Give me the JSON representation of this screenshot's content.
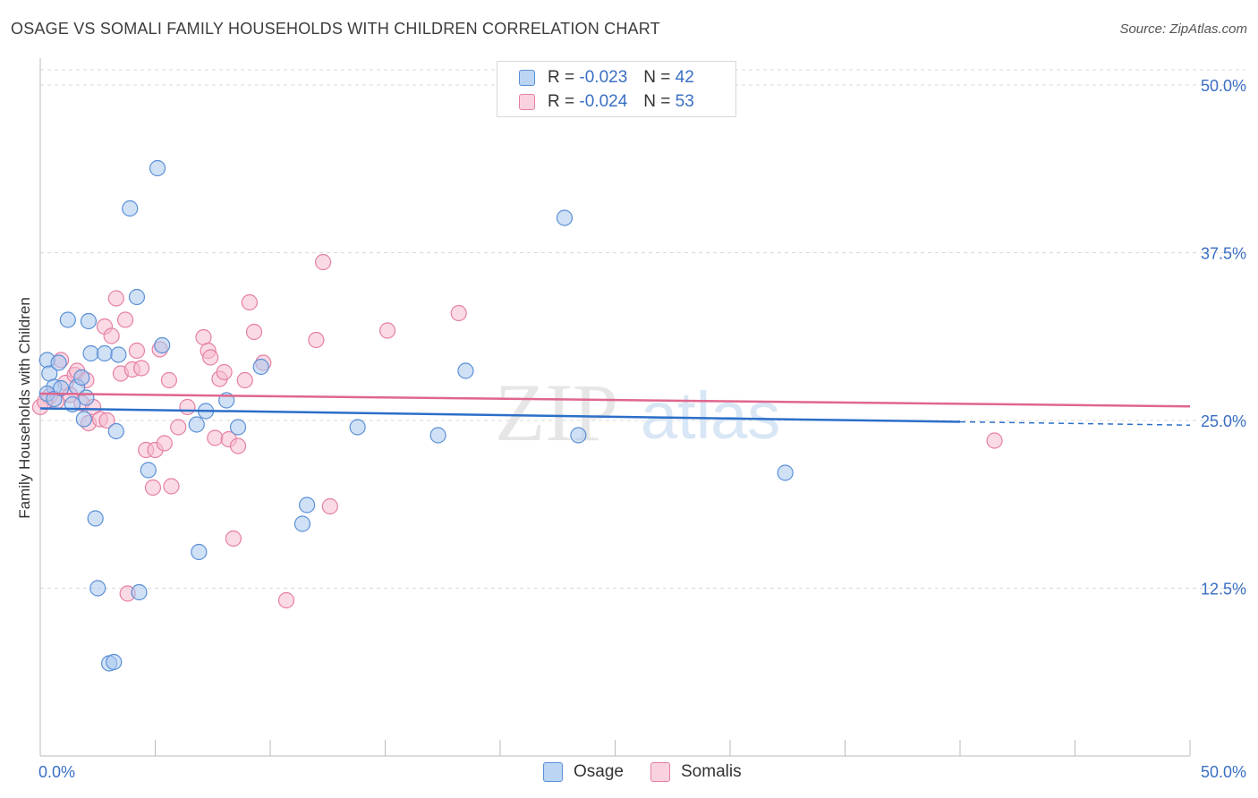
{
  "title": "OSAGE VS SOMALI FAMILY HOUSEHOLDS WITH CHILDREN CORRELATION CHART",
  "source": "Source: ZipAtlas.com",
  "watermark": {
    "zip": "ZIP",
    "atlas": "atlas"
  },
  "legend": {
    "osage": {
      "r_label": "R =",
      "r_value": "-0.023",
      "n_label": "N =",
      "n_value": "42"
    },
    "somalis": {
      "r_label": "R =",
      "r_value": "-0.024",
      "n_label": "N =",
      "n_value": "53"
    }
  },
  "bottom_legend": {
    "osage": "Osage",
    "somalis": "Somalis"
  },
  "colors": {
    "osage_fill": "#a9c8ef",
    "osage_stroke": "#5a8fd6",
    "osage_line": "#2b6fc8",
    "somalis_fill": "#f6bccf",
    "somalis_stroke": "#e57fa2",
    "somalis_line": "#e0668e",
    "axis_text": "#3a6fc4",
    "grid": "#d9d9d9"
  },
  "chart_data": {
    "type": "scatter",
    "title": "OSAGE VS SOMALI FAMILY HOUSEHOLDS WITH CHILDREN CORRELATION CHART",
    "xlabel": "",
    "ylabel": "Family Households with Children",
    "xlim": [
      0,
      50
    ],
    "ylim": [
      0,
      52
    ],
    "x_tick_labels": [
      "0.0%",
      "50.0%"
    ],
    "y_ticks": [
      12.5,
      25.0,
      37.5,
      50.0
    ],
    "y_tick_labels": [
      "12.5%",
      "25.0%",
      "37.5%",
      "50.0%"
    ],
    "series": [
      {
        "name": "Osage",
        "r": -0.023,
        "n": 42,
        "trend": {
          "x": [
            0,
            40,
            50
          ],
          "y": [
            25.9,
            24.9,
            24.65
          ],
          "solid_until": 40
        },
        "points": [
          [
            0.3,
            29.5
          ],
          [
            0.4,
            28.5
          ],
          [
            0.6,
            27.5
          ],
          [
            0.8,
            29.3
          ],
          [
            0.3,
            27.0
          ],
          [
            0.6,
            26.6
          ],
          [
            1.2,
            32.5
          ],
          [
            1.4,
            26.2
          ],
          [
            1.6,
            27.5
          ],
          [
            1.8,
            28.2
          ],
          [
            1.9,
            25.1
          ],
          [
            2.0,
            26.7
          ],
          [
            2.1,
            32.4
          ],
          [
            2.2,
            30.0
          ],
          [
            2.4,
            17.7
          ],
          [
            2.5,
            12.5
          ],
          [
            2.8,
            30.0
          ],
          [
            3.0,
            6.9
          ],
          [
            3.2,
            7.0
          ],
          [
            3.3,
            24.2
          ],
          [
            3.4,
            29.9
          ],
          [
            3.9,
            40.8
          ],
          [
            4.2,
            34.2
          ],
          [
            4.3,
            12.2
          ],
          [
            4.7,
            21.3
          ],
          [
            5.1,
            43.8
          ],
          [
            5.3,
            30.6
          ],
          [
            6.8,
            24.7
          ],
          [
            6.9,
            15.2
          ],
          [
            7.2,
            25.7
          ],
          [
            8.1,
            26.5
          ],
          [
            8.6,
            24.5
          ],
          [
            9.6,
            29.0
          ],
          [
            11.4,
            17.3
          ],
          [
            11.6,
            18.7
          ],
          [
            13.8,
            24.5
          ],
          [
            17.3,
            23.9
          ],
          [
            18.5,
            28.7
          ],
          [
            22.8,
            40.1
          ],
          [
            23.4,
            23.9
          ],
          [
            32.4,
            21.1
          ],
          [
            0.9,
            27.4
          ]
        ]
      },
      {
        "name": "Somalis",
        "r": -0.024,
        "n": 53,
        "trend": {
          "x": [
            0,
            50
          ],
          "y": [
            27.0,
            26.05
          ],
          "solid_until": 50
        },
        "points": [
          [
            0.0,
            26.0
          ],
          [
            0.4,
            26.8
          ],
          [
            0.7,
            26.4
          ],
          [
            0.9,
            29.5
          ],
          [
            1.1,
            27.8
          ],
          [
            1.3,
            26.9
          ],
          [
            1.5,
            28.4
          ],
          [
            1.6,
            28.7
          ],
          [
            1.8,
            26.3
          ],
          [
            2.0,
            28.0
          ],
          [
            2.1,
            24.8
          ],
          [
            2.3,
            26.0
          ],
          [
            2.6,
            25.1
          ],
          [
            2.8,
            32.0
          ],
          [
            2.9,
            25.0
          ],
          [
            3.1,
            31.3
          ],
          [
            3.3,
            34.1
          ],
          [
            3.5,
            28.5
          ],
          [
            3.7,
            32.5
          ],
          [
            3.8,
            12.1
          ],
          [
            4.0,
            28.8
          ],
          [
            4.2,
            30.2
          ],
          [
            4.4,
            28.9
          ],
          [
            4.6,
            22.8
          ],
          [
            4.9,
            20.0
          ],
          [
            5.0,
            22.8
          ],
          [
            5.2,
            30.3
          ],
          [
            5.4,
            23.3
          ],
          [
            5.6,
            28.0
          ],
          [
            5.7,
            20.1
          ],
          [
            6.0,
            24.5
          ],
          [
            6.4,
            26.0
          ],
          [
            7.1,
            31.2
          ],
          [
            7.3,
            30.2
          ],
          [
            7.4,
            29.7
          ],
          [
            7.6,
            23.7
          ],
          [
            7.8,
            28.1
          ],
          [
            8.0,
            28.6
          ],
          [
            8.2,
            23.6
          ],
          [
            8.4,
            16.2
          ],
          [
            8.6,
            23.1
          ],
          [
            8.9,
            28.0
          ],
          [
            9.1,
            33.8
          ],
          [
            9.3,
            31.6
          ],
          [
            9.7,
            29.3
          ],
          [
            10.7,
            11.6
          ],
          [
            12.0,
            31.0
          ],
          [
            12.3,
            36.8
          ],
          [
            12.6,
            18.6
          ],
          [
            15.1,
            31.7
          ],
          [
            18.2,
            33.0
          ],
          [
            41.5,
            23.5
          ],
          [
            0.2,
            26.4
          ]
        ]
      }
    ]
  }
}
